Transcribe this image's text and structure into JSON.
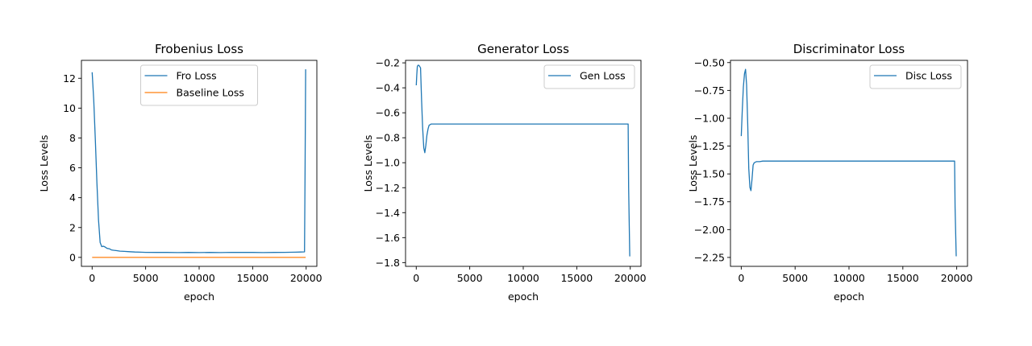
{
  "figure": {
    "background": "#ffffff",
    "series_colors": {
      "blue": "#1f77b4",
      "orange": "#ff7f0e"
    }
  },
  "chart_data": [
    {
      "type": "line",
      "title": "Frobenius Loss",
      "xlabel": "epoch",
      "ylabel": "Loss Levels",
      "xlim": [
        -1000,
        21000
      ],
      "ylim": [
        -0.6,
        13.2
      ],
      "xticks": [
        0,
        5000,
        10000,
        15000,
        20000
      ],
      "xtick_labels": [
        "0",
        "5000",
        "10000",
        "15000",
        "20000"
      ],
      "yticks": [
        0,
        2,
        4,
        6,
        8,
        10,
        12
      ],
      "ytick_labels": [
        "0",
        "2",
        "4",
        "6",
        "8",
        "10",
        "12"
      ],
      "grid": false,
      "legend": "top-center",
      "series": [
        {
          "name": "Fro Loss",
          "color": "#1f77b4",
          "x": [
            0,
            150,
            300,
            450,
            600,
            750,
            900,
            1050,
            1200,
            1400,
            1600,
            1800,
            2000,
            2300,
            2600,
            3000,
            3500,
            4000,
            4500,
            5000,
            6000,
            7000,
            8000,
            9000,
            10000,
            11000,
            12000,
            13000,
            14000,
            15000,
            16000,
            17000,
            18000,
            19000,
            19500,
            19850,
            19900,
            19950
          ],
          "y": [
            12.4,
            10.5,
            7.8,
            5.0,
            2.5,
            1.0,
            0.72,
            0.75,
            0.7,
            0.6,
            0.58,
            0.5,
            0.48,
            0.45,
            0.42,
            0.4,
            0.38,
            0.36,
            0.35,
            0.34,
            0.33,
            0.33,
            0.32,
            0.33,
            0.32,
            0.33,
            0.32,
            0.34,
            0.33,
            0.33,
            0.32,
            0.33,
            0.34,
            0.35,
            0.36,
            0.37,
            6.0,
            12.6
          ]
        },
        {
          "name": "Baseline Loss",
          "color": "#ff7f0e",
          "x": [
            0,
            19950
          ],
          "y": [
            0.0,
            0.0
          ]
        }
      ]
    },
    {
      "type": "line",
      "title": "Generator Loss",
      "xlabel": "epoch",
      "ylabel": "Loss Levels",
      "xlim": [
        -1000,
        21000
      ],
      "ylim": [
        -1.83,
        -0.18
      ],
      "xticks": [
        0,
        5000,
        10000,
        15000,
        20000
      ],
      "xtick_labels": [
        "0",
        "5000",
        "10000",
        "15000",
        "20000"
      ],
      "yticks": [
        -1.8,
        -1.6,
        -1.4,
        -1.2,
        -1.0,
        -0.8,
        -0.6,
        -0.4,
        -0.2
      ],
      "ytick_labels": [
        "−1.8",
        "−1.6",
        "−1.4",
        "−1.2",
        "−1.0",
        "−0.8",
        "−0.6",
        "−0.4",
        "−0.2"
      ],
      "grid": false,
      "legend": "top-right",
      "series": [
        {
          "name": "Gen Loss",
          "color": "#1f77b4",
          "x": [
            0,
            50,
            100,
            150,
            250,
            400,
            500,
            600,
            700,
            800,
            900,
            1000,
            1100,
            1200,
            1400,
            1700,
            2000,
            3000,
            5000,
            7000,
            9000,
            11000,
            13000,
            15000,
            17000,
            19000,
            19700,
            19800,
            19850,
            19950
          ],
          "y": [
            -0.38,
            -0.3,
            -0.23,
            -0.22,
            -0.22,
            -0.24,
            -0.5,
            -0.72,
            -0.88,
            -0.92,
            -0.86,
            -0.78,
            -0.73,
            -0.7,
            -0.69,
            -0.69,
            -0.69,
            -0.69,
            -0.69,
            -0.69,
            -0.69,
            -0.69,
            -0.69,
            -0.69,
            -0.69,
            -0.69,
            -0.69,
            -0.69,
            -1.2,
            -1.75
          ]
        }
      ]
    },
    {
      "type": "line",
      "title": "Discriminator Loss",
      "xlabel": "epoch",
      "ylabel": "Loss Levels",
      "xlim": [
        -1000,
        21000
      ],
      "ylim": [
        -2.33,
        -0.48
      ],
      "xticks": [
        0,
        5000,
        10000,
        15000,
        20000
      ],
      "xtick_labels": [
        "0",
        "5000",
        "10000",
        "15000",
        "20000"
      ],
      "yticks": [
        -2.25,
        -2.0,
        -1.75,
        -1.5,
        -1.25,
        -1.0,
        -0.75,
        -0.5
      ],
      "ytick_labels": [
        "−2.25",
        "−2.00",
        "−1.75",
        "−1.50",
        "−1.25",
        "−1.00",
        "−0.75",
        "−0.50"
      ],
      "grid": false,
      "legend": "top-right",
      "series": [
        {
          "name": "Disc Loss",
          "color": "#1f77b4",
          "x": [
            0,
            100,
            200,
            300,
            400,
            500,
            600,
            700,
            800,
            900,
            1000,
            1100,
            1200,
            1400,
            1700,
            2000,
            3000,
            5000,
            7000,
            9000,
            11000,
            13000,
            15000,
            17000,
            19000,
            19700,
            19800,
            19850,
            19950
          ],
          "y": [
            -1.16,
            -0.92,
            -0.72,
            -0.6,
            -0.56,
            -0.7,
            -1.05,
            -1.45,
            -1.62,
            -1.65,
            -1.55,
            -1.42,
            -1.4,
            -1.39,
            -1.39,
            -1.385,
            -1.385,
            -1.385,
            -1.385,
            -1.385,
            -1.385,
            -1.385,
            -1.385,
            -1.385,
            -1.385,
            -1.385,
            -1.385,
            -1.8,
            -2.24
          ]
        }
      ]
    }
  ]
}
